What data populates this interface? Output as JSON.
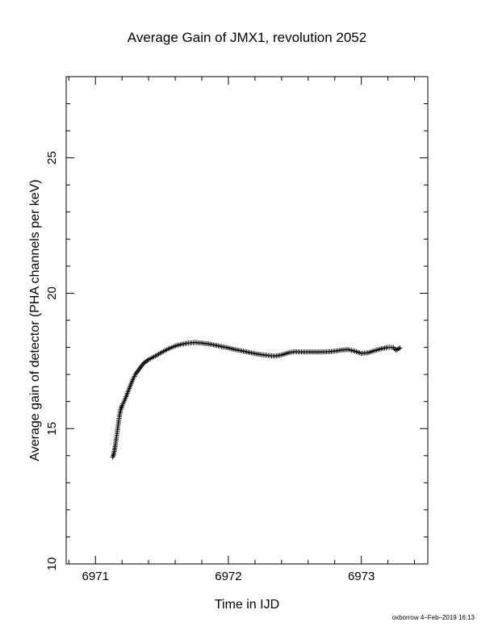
{
  "chart_data": {
    "type": "scatter",
    "title": "Average Gain of JMX1, revolution 2052",
    "xlabel": "Time in IJD",
    "ylabel": "Average gain of detector (PHA channels per keV)",
    "xlim": [
      6970.78,
      6973.5
    ],
    "ylim": [
      10,
      28
    ],
    "xticks": [
      6971,
      6972,
      6973
    ],
    "yticks": [
      10,
      15,
      20,
      25
    ],
    "marker": "plus",
    "grid": false,
    "points": [
      [
        6971.13,
        13.95
      ],
      [
        6971.14,
        14.1
      ],
      [
        6971.15,
        14.4
      ],
      [
        6971.16,
        14.75
      ],
      [
        6971.17,
        15.1
      ],
      [
        6971.18,
        15.45
      ],
      [
        6971.19,
        15.7
      ],
      [
        6971.2,
        15.85
      ],
      [
        6971.22,
        16.05
      ],
      [
        6971.24,
        16.3
      ],
      [
        6971.26,
        16.55
      ],
      [
        6971.28,
        16.8
      ],
      [
        6971.3,
        17.0
      ],
      [
        6971.33,
        17.2
      ],
      [
        6971.36,
        17.4
      ],
      [
        6971.4,
        17.55
      ],
      [
        6971.45,
        17.68
      ],
      [
        6971.5,
        17.82
      ],
      [
        6971.55,
        17.95
      ],
      [
        6971.6,
        18.05
      ],
      [
        6971.65,
        18.12
      ],
      [
        6971.7,
        18.16
      ],
      [
        6971.75,
        18.18
      ],
      [
        6971.8,
        18.16
      ],
      [
        6971.85,
        18.13
      ],
      [
        6971.9,
        18.08
      ],
      [
        6971.95,
        18.03
      ],
      [
        6972.0,
        17.98
      ],
      [
        6972.05,
        17.92
      ],
      [
        6972.1,
        17.87
      ],
      [
        6972.15,
        17.82
      ],
      [
        6972.2,
        17.77
      ],
      [
        6972.25,
        17.73
      ],
      [
        6972.3,
        17.7
      ],
      [
        6972.35,
        17.68
      ],
      [
        6972.4,
        17.72
      ],
      [
        6972.45,
        17.8
      ],
      [
        6972.5,
        17.84
      ],
      [
        6972.55,
        17.83
      ],
      [
        6972.6,
        17.83
      ],
      [
        6972.65,
        17.83
      ],
      [
        6972.7,
        17.83
      ],
      [
        6972.75,
        17.84
      ],
      [
        6972.8,
        17.86
      ],
      [
        6972.85,
        17.9
      ],
      [
        6972.9,
        17.92
      ],
      [
        6972.95,
        17.86
      ],
      [
        6973.0,
        17.78
      ],
      [
        6973.05,
        17.8
      ],
      [
        6973.1,
        17.88
      ],
      [
        6973.15,
        17.95
      ],
      [
        6973.2,
        18.0
      ],
      [
        6973.24,
        18.0
      ],
      [
        6973.26,
        17.9
      ],
      [
        6973.28,
        17.95
      ],
      [
        6973.29,
        17.98
      ]
    ]
  },
  "footer": "oxborrow  4–Feb–2019 16:13"
}
